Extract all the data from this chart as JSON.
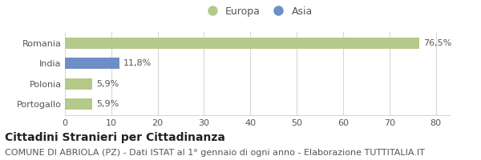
{
  "categories": [
    "Romania",
    "India",
    "Polonia",
    "Portogallo"
  ],
  "values": [
    76.5,
    11.8,
    5.9,
    5.9
  ],
  "labels": [
    "76,5%",
    "11,8%",
    "5,9%",
    "5,9%"
  ],
  "colors": [
    "#b5c98a",
    "#6e8fc5",
    "#b5c98a",
    "#b5c98a"
  ],
  "legend_entries": [
    "Europa",
    "Asia"
  ],
  "legend_colors": [
    "#b5c98a",
    "#6e8fc5"
  ],
  "xlim": [
    0,
    83
  ],
  "xticks": [
    0,
    10,
    20,
    30,
    40,
    50,
    60,
    70,
    80
  ],
  "title_bold": "Cittadini Stranieri per Cittadinanza",
  "subtitle": "COMUNE DI ABRIOLA (PZ) - Dati ISTAT al 1° gennaio di ogni anno - Elaborazione TUTTITALIA.IT",
  "background_color": "#ffffff",
  "grid_color": "#d8d8d8",
  "bar_height": 0.55,
  "title_fontsize": 10,
  "subtitle_fontsize": 8,
  "label_fontsize": 8,
  "tick_fontsize": 8,
  "legend_fontsize": 9
}
